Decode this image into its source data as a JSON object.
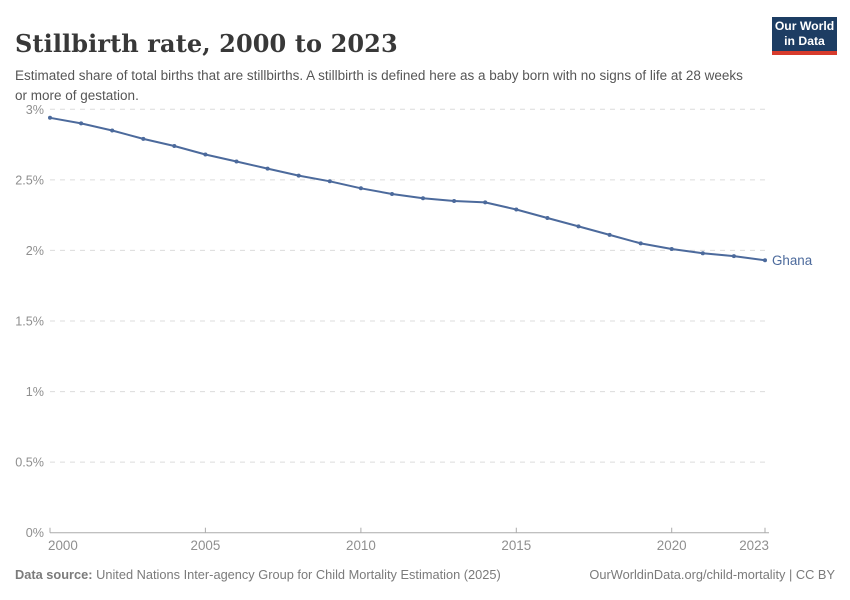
{
  "header": {
    "title": "Stillbirth rate, 2000 to 2023",
    "subtitle": "Estimated share of total births that are stillbirths. A stillbirth is defined here as a baby born with no signs of life at 28 weeks or more of gestation.",
    "logo": {
      "line1": "Our World",
      "line2": "in Data",
      "bg_color": "#1d3d63",
      "accent_color": "#d73b2c"
    }
  },
  "chart_data": {
    "type": "line",
    "title": "Stillbirth rate, 2000 to 2023",
    "xlabel": "",
    "ylabel": "",
    "xlim": [
      2000,
      2023
    ],
    "ylim": [
      0,
      3
    ],
    "x_ticks": [
      2000,
      2005,
      2010,
      2015,
      2020,
      2023
    ],
    "y_ticks": [
      "0%",
      "0.5%",
      "1%",
      "1.5%",
      "2%",
      "2.5%",
      "3%"
    ],
    "grid": "horizontal-dashed",
    "legend_position": "end-of-line-label",
    "series": [
      {
        "name": "Ghana",
        "color": "#4c6a9c",
        "x": [
          2000,
          2001,
          2002,
          2003,
          2004,
          2005,
          2006,
          2007,
          2008,
          2009,
          2010,
          2011,
          2012,
          2013,
          2014,
          2015,
          2016,
          2017,
          2018,
          2019,
          2020,
          2021,
          2022,
          2023
        ],
        "values": [
          2.94,
          2.9,
          2.85,
          2.79,
          2.74,
          2.68,
          2.63,
          2.58,
          2.53,
          2.49,
          2.44,
          2.4,
          2.37,
          2.35,
          2.34,
          2.29,
          2.23,
          2.17,
          2.11,
          2.05,
          2.01,
          1.98,
          1.96,
          1.93
        ],
        "unit": "%"
      }
    ]
  },
  "footer": {
    "datasource_label": "Data source:",
    "datasource_text": " United Nations Inter-agency Group for Child Mortality Estimation (2025)",
    "link_text": "OurWorldinData.org/child-mortality | CC BY"
  }
}
